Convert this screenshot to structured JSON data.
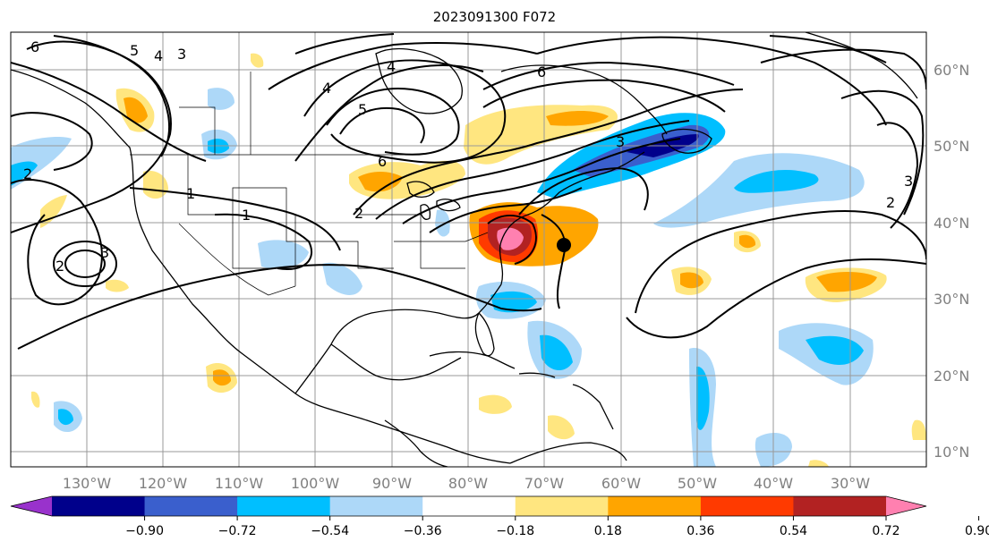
{
  "title": "2023091300 F072",
  "lat_labels": [
    "60°N",
    "50°N",
    "40°N",
    "30°N",
    "20°N",
    "10°N"
  ],
  "lon_labels": [
    "130°W",
    "120°W",
    "110°W",
    "100°W",
    "90°W",
    "80°W",
    "70°W",
    "60°W",
    "50°W",
    "40°W",
    "30°W"
  ],
  "colorbar": {
    "ticks": [
      "−0.90",
      "−0.72",
      "−0.54",
      "−0.36",
      "−0.18",
      "0.18",
      "0.36",
      "0.54",
      "0.72",
      "0.90"
    ],
    "colors": [
      "#9932cc",
      "#00008b",
      "#3a5fcd",
      "#00bfff",
      "#add8f8",
      "#ffffff",
      "#ffe680",
      "#ffa500",
      "#ff3a00",
      "#b22222",
      "#ff80b0"
    ]
  },
  "contour_labels": [
    "6",
    "5",
    "4",
    "3",
    "2",
    "1",
    "1",
    "2",
    "3",
    "2",
    "4",
    "5",
    "4",
    "6",
    "3",
    "6",
    "2",
    "3"
  ],
  "colors": {
    "grid": "#999999",
    "coast": "#000000",
    "storm_marker": "#000000"
  }
}
